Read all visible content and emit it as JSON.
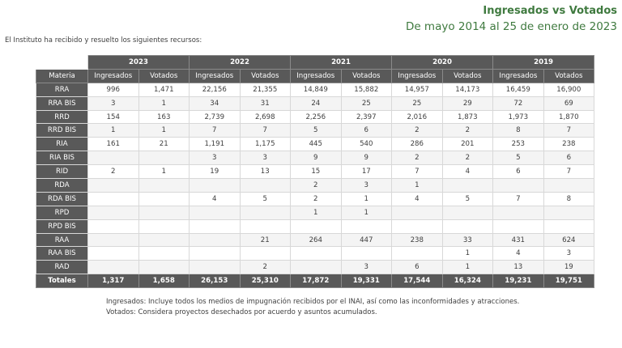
{
  "header": {
    "title": "Ingresados vs Votados",
    "subtitle": "De mayo 2014 al 25 de enero de 2023"
  },
  "intro": "El Instituto ha recibido y resuelto los siguientes recursos:",
  "table": {
    "years": [
      "2023",
      "2022",
      "2021",
      "2020",
      "2019"
    ],
    "first_col_header": "Materia",
    "sub_headers": [
      "Ingresados",
      "Votados"
    ],
    "rows": [
      {
        "label": "RRA",
        "values": [
          "996",
          "1,471",
          "22,156",
          "21,355",
          "14,849",
          "15,882",
          "14,957",
          "14,173",
          "16,459",
          "16,900"
        ]
      },
      {
        "label": "RRA BIS",
        "values": [
          "3",
          "1",
          "34",
          "31",
          "24",
          "25",
          "25",
          "29",
          "72",
          "69"
        ]
      },
      {
        "label": "RRD",
        "values": [
          "154",
          "163",
          "2,739",
          "2,698",
          "2,256",
          "2,397",
          "2,016",
          "1,873",
          "1,973",
          "1,870"
        ]
      },
      {
        "label": "RRD BIS",
        "values": [
          "1",
          "1",
          "7",
          "7",
          "5",
          "6",
          "2",
          "2",
          "8",
          "7"
        ]
      },
      {
        "label": "RIA",
        "values": [
          "161",
          "21",
          "1,191",
          "1,175",
          "445",
          "540",
          "286",
          "201",
          "253",
          "238"
        ]
      },
      {
        "label": "RIA BIS",
        "values": [
          "",
          "",
          "3",
          "3",
          "9",
          "9",
          "2",
          "2",
          "5",
          "6"
        ]
      },
      {
        "label": "RID",
        "values": [
          "2",
          "1",
          "19",
          "13",
          "15",
          "17",
          "7",
          "4",
          "6",
          "7"
        ]
      },
      {
        "label": "RDA",
        "values": [
          "",
          "",
          "",
          "",
          "2",
          "3",
          "1",
          "",
          "",
          ""
        ]
      },
      {
        "label": "RDA BIS",
        "values": [
          "",
          "",
          "4",
          "5",
          "2",
          "1",
          "4",
          "5",
          "7",
          "8"
        ]
      },
      {
        "label": "RPD",
        "values": [
          "",
          "",
          "",
          "",
          "1",
          "1",
          "",
          "",
          "",
          ""
        ]
      },
      {
        "label": "RPD BIS",
        "values": [
          "",
          "",
          "",
          "",
          "",
          "",
          "",
          "",
          "",
          ""
        ]
      },
      {
        "label": "RAA",
        "values": [
          "",
          "",
          "",
          "21",
          "264",
          "447",
          "238",
          "33",
          "431",
          "624"
        ]
      },
      {
        "label": "RAA BIS",
        "values": [
          "",
          "",
          "",
          "",
          "",
          "",
          "",
          "1",
          "4",
          "3"
        ]
      },
      {
        "label": "RAD",
        "values": [
          "",
          "",
          "",
          "2",
          "",
          "3",
          "6",
          "1",
          "13",
          "19"
        ]
      }
    ],
    "totals": {
      "label": "Totales",
      "values": [
        "1,317",
        "1,658",
        "26,153",
        "25,310",
        "17,872",
        "19,331",
        "17,544",
        "16,324",
        "19,231",
        "19,751"
      ]
    }
  },
  "notes": [
    "Ingresados: Incluye todos los medios de impugnación recibidos por el INAI, así como las inconformidades y atracciones.",
    "Votados: Considera proyectos desechados por acuerdo y asuntos acumulados."
  ]
}
